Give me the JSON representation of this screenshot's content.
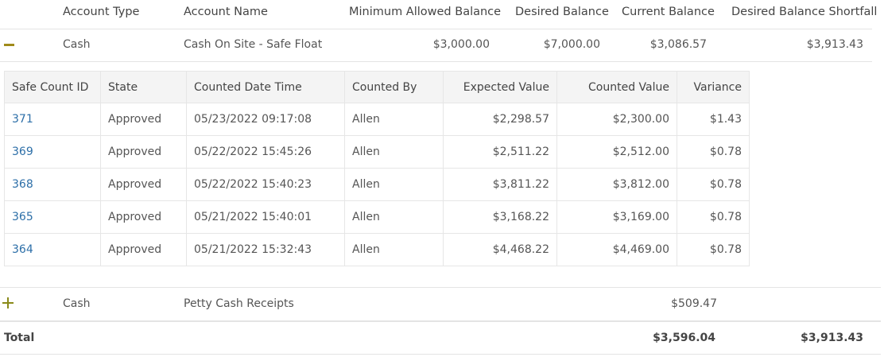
{
  "header": {
    "account_type": "Account Type",
    "account_name": "Account Name",
    "min_balance": "Minimum Allowed Balance",
    "desired_balance": "Desired Balance",
    "current_balance": "Current Balance",
    "shortfall": "Desired Balance Shortfall"
  },
  "accounts": [
    {
      "expanded": true,
      "type": "Cash",
      "name": "Cash On Site - Safe Float",
      "min_balance": "$3,000.00",
      "desired_balance": "$7,000.00",
      "current_balance": "$3,086.57",
      "shortfall": "$3,913.43"
    },
    {
      "expanded": false,
      "type": "Cash",
      "name": "Petty Cash Receipts",
      "min_balance": "",
      "desired_balance": "",
      "current_balance": "$509.47",
      "shortfall": ""
    }
  ],
  "safe_counts": {
    "columns": [
      "Safe Count ID",
      "State",
      "Counted Date Time",
      "Counted By",
      "Expected Value",
      "Counted Value",
      "Variance"
    ],
    "rows": [
      {
        "id": "371",
        "state": "Approved",
        "datetime": "05/23/2022 09:17:08",
        "by": "Allen",
        "expected": "$2,298.57",
        "counted": "$2,300.00",
        "variance": "$1.43"
      },
      {
        "id": "369",
        "state": "Approved",
        "datetime": "05/22/2022 15:45:26",
        "by": "Allen",
        "expected": "$2,511.22",
        "counted": "$2,512.00",
        "variance": "$0.78"
      },
      {
        "id": "368",
        "state": "Approved",
        "datetime": "05/22/2022 15:40:23",
        "by": "Allen",
        "expected": "$3,811.22",
        "counted": "$3,812.00",
        "variance": "$0.78"
      },
      {
        "id": "365",
        "state": "Approved",
        "datetime": "05/21/2022 15:40:01",
        "by": "Allen",
        "expected": "$3,168.22",
        "counted": "$3,169.00",
        "variance": "$0.78"
      },
      {
        "id": "364",
        "state": "Approved",
        "datetime": "05/21/2022 15:32:43",
        "by": "Allen",
        "expected": "$4,468.22",
        "counted": "$4,469.00",
        "variance": "$0.78"
      }
    ]
  },
  "total": {
    "label": "Total",
    "current_balance": "$3,596.04",
    "shortfall": "$3,913.43"
  },
  "colors": {
    "link": "#2d6fa8",
    "variance": "#c0354f",
    "toggle": "#a08a1a"
  }
}
